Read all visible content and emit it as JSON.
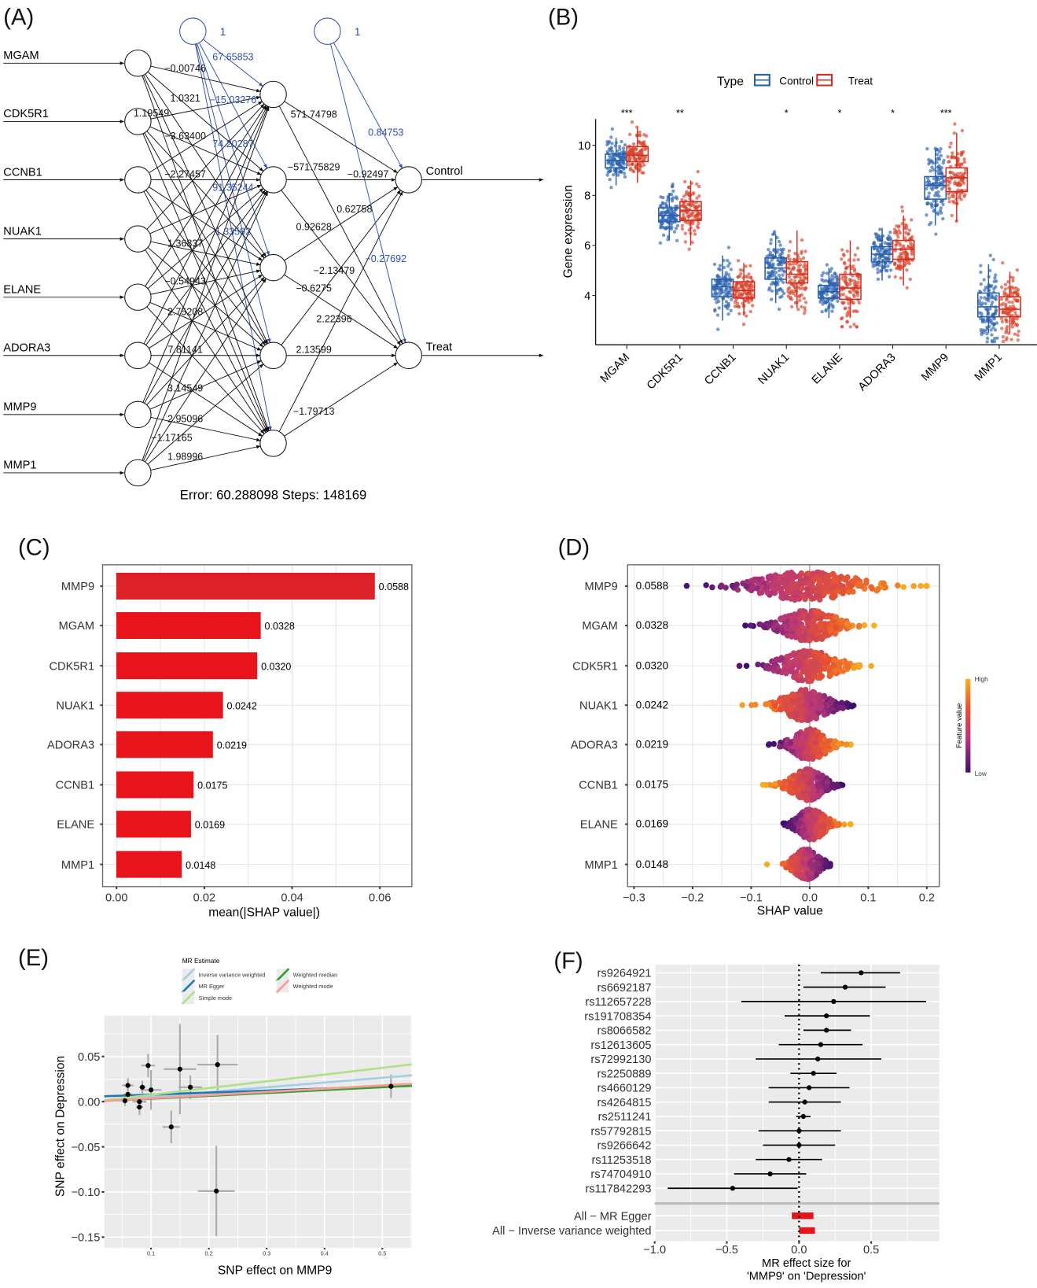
{
  "panels": {
    "a": "(A)",
    "b": "(B)",
    "c": "(C)",
    "d": "(D)",
    "e": "(E)",
    "f": "(F)"
  },
  "chart_data": [
    {
      "type": "diagram",
      "title": "Neural network",
      "inputs": [
        "MGAM",
        "CDK5R1",
        "CCNB1",
        "NUAK1",
        "ELANE",
        "ADORA3",
        "MMP9",
        "MMP1"
      ],
      "hidden_count": 5,
      "outputs": [
        "Control",
        "Treat"
      ],
      "bias_label": "1",
      "bias_hidden_weights": [
        "67.65853",
        "-15.03276",
        "74.20287",
        "91.35244",
        "1.33592"
      ],
      "bias_output_weights": [
        "0.84753",
        "-0.27692"
      ],
      "hidden_output_weights": [
        [
          "571.74798",
          "-571.75829"
        ],
        [
          "-0.92497",
          "0.92628"
        ],
        [
          "0.62758",
          "-0.6275"
        ],
        [
          "-2.13479",
          "2.13599"
        ],
        [
          "2.22396",
          "-1.79713"
        ]
      ],
      "input_hidden_labels": [
        {
          "from": 0,
          "to": 0,
          "w": "-0.00746"
        },
        {
          "from": 0,
          "to": 1,
          "w": "1.0321"
        },
        {
          "from": 1,
          "to": 0,
          "w": "1.19549"
        },
        {
          "from": 1,
          "to": 1,
          "w": "-3.63400"
        },
        {
          "from": 2,
          "to": 1,
          "w": "-2.27457"
        },
        {
          "from": 3,
          "to": 2,
          "w": "1.36837"
        },
        {
          "from": 4,
          "to": 2,
          "w": "-0.54943"
        },
        {
          "from": 4,
          "to": 3,
          "w": "2.75208"
        },
        {
          "from": 5,
          "to": 3,
          "w": "7.81141"
        },
        {
          "from": 6,
          "to": 3,
          "w": "3.14549"
        },
        {
          "from": 6,
          "to": 4,
          "w": "2.95096"
        },
        {
          "from": 7,
          "to": 3,
          "w": "-1.17165"
        },
        {
          "from": 7,
          "to": 4,
          "w": "1.98996"
        }
      ],
      "footer": "Error: 60.288098   Steps: 148169"
    },
    {
      "type": "box",
      "ylabel": "Gene expression",
      "ylim": [
        2.0,
        11.1
      ],
      "yticks": [
        4,
        6,
        8,
        10
      ],
      "legend_title": "Type",
      "legend_position": "top",
      "categories": [
        "MGAM",
        "CDK5R1",
        "CCNB1",
        "NUAK1",
        "ELANE",
        "ADORA3",
        "MMP9",
        "MMP1"
      ],
      "significance": [
        "***",
        "**",
        "",
        "*",
        "*",
        "*",
        "***",
        ""
      ],
      "series": [
        {
          "name": "Control",
          "color": "#2160ac",
          "stats": [
            [
              8.4,
              9.1,
              9.4,
              9.65,
              10.3
            ],
            [
              6.2,
              6.95,
              7.2,
              7.5,
              8.1
            ],
            [
              3.0,
              3.95,
              4.35,
              4.65,
              5.6
            ],
            [
              3.7,
              4.65,
              5.1,
              5.5,
              6.45
            ],
            [
              3.1,
              3.9,
              4.15,
              4.4,
              5.1
            ],
            [
              4.6,
              5.35,
              5.65,
              5.95,
              6.7
            ],
            [
              6.8,
              7.85,
              8.4,
              8.75,
              9.85
            ],
            [
              2.5,
              3.15,
              3.55,
              4.1,
              5.25
            ]
          ]
        },
        {
          "name": "Treat",
          "color": "#d62c20",
          "stats": [
            [
              8.5,
              9.35,
              9.6,
              9.95,
              10.7
            ],
            [
              6.0,
              7.0,
              7.4,
              7.75,
              8.6
            ],
            [
              3.2,
              3.9,
              4.2,
              4.55,
              5.3
            ],
            [
              3.5,
              4.5,
              4.85,
              5.35,
              6.6
            ],
            [
              3.1,
              3.85,
              4.3,
              4.85,
              6.2
            ],
            [
              4.4,
              5.45,
              5.85,
              6.2,
              7.2
            ],
            [
              6.95,
              8.15,
              8.7,
              9.1,
              10.5
            ],
            [
              2.5,
              3.15,
              3.45,
              3.95,
              4.95
            ]
          ]
        }
      ]
    },
    {
      "type": "bar",
      "orientation": "horizontal",
      "xlabel": "mean(|SHAP value|)",
      "xlim": [
        0,
        0.068
      ],
      "xticks": [
        "0.00",
        "0.02",
        "0.04",
        "0.06"
      ],
      "categories": [
        "MMP9",
        "MGAM",
        "CDK5R1",
        "NUAK1",
        "ADORA3",
        "CCNB1",
        "ELANE",
        "MMP1"
      ],
      "values": [
        0.0588,
        0.0328,
        0.032,
        0.0242,
        0.0219,
        0.0175,
        0.0169,
        0.0148
      ],
      "labels": [
        "0.0588",
        "0.0328",
        "0.0320",
        "0.0242",
        "0.0219",
        "0.0175",
        "0.0169",
        "0.0148"
      ],
      "colors": [
        "#dc2128",
        "#e8141c"
      ],
      "grid": true
    },
    {
      "type": "scatter",
      "subtype": "beeswarm",
      "xlabel": "SHAP value",
      "xlim": [
        -0.31,
        0.22
      ],
      "xticks": [
        "-0.3",
        "-0.2",
        "-0.1",
        "0.0",
        "0.1",
        "0.2"
      ],
      "categories": [
        "MMP9",
        "MGAM",
        "CDK5R1",
        "NUAK1",
        "ADORA3",
        "CCNB1",
        "ELANE",
        "MMP1"
      ],
      "mean_abs": [
        "0.0588",
        "0.0328",
        "0.0320",
        "0.0242",
        "0.0219",
        "0.0175",
        "0.0169",
        "0.0148"
      ],
      "ranges": [
        [
          -0.21,
          0.2
        ],
        [
          -0.11,
          0.11
        ],
        [
          -0.12,
          0.105
        ],
        [
          -0.115,
          0.075
        ],
        [
          -0.07,
          0.07
        ],
        [
          -0.08,
          0.056
        ],
        [
          -0.045,
          0.07
        ],
        [
          -0.073,
          0.035
        ]
      ],
      "high_feature_positive": [
        true,
        true,
        true,
        false,
        true,
        false,
        true,
        false
      ],
      "colorbar": {
        "title": "Feature value",
        "high": "High",
        "low": "Low",
        "colors": [
          "#3b0f6f",
          "#b5367a",
          "#e8542f",
          "#f6b023"
        ]
      }
    },
    {
      "type": "scatter",
      "xlabel": "SNP effect on MMP9",
      "ylabel": "SNP effect on Depression",
      "xlim": [
        0.02,
        0.55
      ],
      "ylim": [
        -0.16,
        0.09
      ],
      "xticks": [
        "0.1",
        "0.2",
        "0.3",
        "0.4",
        "0.5"
      ],
      "yticks": [
        "0.05",
        "0.00",
        "-0.05",
        "-0.10",
        "-0.15"
      ],
      "points": [
        [
          0.095,
          0.04,
          0.012,
          0.013
        ],
        [
          0.15,
          0.036,
          0.028,
          0.05
        ],
        [
          0.215,
          0.041,
          0.035,
          0.033
        ],
        [
          0.06,
          0.018,
          0.01,
          0.008
        ],
        [
          0.085,
          0.016,
          0.006,
          0.007
        ],
        [
          0.1,
          0.013,
          0.018,
          0.022
        ],
        [
          0.168,
          0.016,
          0.02,
          0.013
        ],
        [
          0.06,
          0.008,
          0.008,
          0.006
        ],
        [
          0.055,
          0.001,
          0.006,
          0.006
        ],
        [
          0.08,
          0.0,
          0.012,
          0.006
        ],
        [
          0.08,
          -0.006,
          0.006,
          0.009
        ],
        [
          0.135,
          -0.028,
          0.015,
          0.018
        ],
        [
          0.213,
          -0.099,
          0.032,
          0.05
        ],
        [
          0.515,
          0.017,
          0.0,
          0.013
        ]
      ],
      "legend_title": "MR Estimate",
      "legend_position": "top",
      "lines": [
        {
          "name": "Inverse variance weighted",
          "color": "#a6cee3",
          "intercept": 0.0,
          "slope": 0.053
        },
        {
          "name": "MR Egger",
          "color": "#1f78b4",
          "intercept": 0.0055,
          "slope": 0.0226
        },
        {
          "name": "Simple mode",
          "color": "#b2df8a",
          "intercept": 0.0,
          "slope": 0.075
        },
        {
          "name": "Weighted median",
          "color": "#33a02c",
          "intercept": 0.0,
          "slope": 0.032
        },
        {
          "name": "Weighted mode",
          "color": "#fb9a99",
          "intercept": 0.0,
          "slope": 0.036
        }
      ]
    },
    {
      "type": "forest",
      "xlabel_line1": "MR effect size for",
      "xlabel_line2": "'MMP9' on 'Depression'",
      "xlim": [
        -1.0,
        0.97
      ],
      "xticks": [
        "-1.0",
        "-0.5",
        "0.0",
        "0.5"
      ],
      "snps": [
        {
          "name": "rs9264921",
          "b": 0.43,
          "lo": 0.15,
          "hi": 0.7
        },
        {
          "name": "rs6692187",
          "b": 0.32,
          "lo": 0.03,
          "hi": 0.6
        },
        {
          "name": "rs112657228",
          "b": 0.24,
          "lo": -0.4,
          "hi": 0.88
        },
        {
          "name": "rs191708354",
          "b": 0.19,
          "lo": -0.1,
          "hi": 0.49
        },
        {
          "name": "rs8066582",
          "b": 0.19,
          "lo": 0.03,
          "hi": 0.36
        },
        {
          "name": "rs12613605",
          "b": 0.15,
          "lo": -0.14,
          "hi": 0.44
        },
        {
          "name": "rs72992130",
          "b": 0.13,
          "lo": -0.3,
          "hi": 0.57
        },
        {
          "name": "rs2250889",
          "b": 0.1,
          "lo": -0.06,
          "hi": 0.26
        },
        {
          "name": "rs4660129",
          "b": 0.07,
          "lo": -0.21,
          "hi": 0.35
        },
        {
          "name": "rs4264815",
          "b": 0.04,
          "lo": -0.21,
          "hi": 0.29
        },
        {
          "name": "rs2511241",
          "b": 0.03,
          "lo": -0.02,
          "hi": 0.08
        },
        {
          "name": "rs57792815",
          "b": 0.0,
          "lo": -0.28,
          "hi": 0.29
        },
        {
          "name": "rs9266642",
          "b": 0.0,
          "lo": -0.25,
          "hi": 0.25
        },
        {
          "name": "rs11253518",
          "b": -0.07,
          "lo": -0.3,
          "hi": 0.16
        },
        {
          "name": "rs74704910",
          "b": -0.2,
          "lo": -0.45,
          "hi": 0.05
        },
        {
          "name": "rs117842293",
          "b": -0.46,
          "lo": -0.91,
          "hi": -0.01
        }
      ],
      "summary": [
        {
          "name": "All − MR Egger",
          "lo": -0.05,
          "hi": 0.1,
          "color": "#e8141c"
        },
        {
          "name": "All − Inverse variance weighted",
          "lo": 0.0,
          "hi": 0.11,
          "color": "#e8141c"
        }
      ]
    }
  ]
}
